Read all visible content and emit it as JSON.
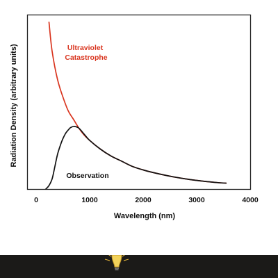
{
  "chart_data": {
    "type": "line",
    "xlabel": "Wavelength (nm)",
    "ylabel": "Radiation Density (arbitrary units)",
    "xlim": [
      0,
      4000
    ],
    "x_ticks": [
      0,
      1000,
      2000,
      3000,
      4000
    ],
    "y_ticks_labeled": false,
    "grid": false,
    "series": [
      {
        "name": "Ultraviolet Catastrophe",
        "color": "#d9351f",
        "points": [
          [
            240,
            96
          ],
          [
            300,
            79
          ],
          [
            400,
            63
          ],
          [
            500,
            53
          ],
          [
            600,
            45
          ],
          [
            700,
            40
          ],
          [
            800,
            35
          ],
          [
            900,
            31
          ],
          [
            1000,
            28
          ],
          [
            1200,
            23
          ],
          [
            1400,
            19
          ],
          [
            1600,
            16
          ],
          [
            1800,
            13
          ],
          [
            2000,
            11
          ],
          [
            2200,
            9.4
          ],
          [
            2500,
            7.4
          ],
          [
            2800,
            5.8
          ],
          [
            3100,
            4.6
          ],
          [
            3400,
            3.7
          ],
          [
            3550,
            3.4
          ]
        ]
      },
      {
        "name": "Observation",
        "color": "#111111",
        "points": [
          [
            180,
            0
          ],
          [
            240,
            2
          ],
          [
            300,
            6
          ],
          [
            350,
            13
          ],
          [
            400,
            20
          ],
          [
            450,
            25
          ],
          [
            500,
            29
          ],
          [
            550,
            32
          ],
          [
            600,
            34
          ],
          [
            650,
            35.5
          ],
          [
            720,
            36
          ],
          [
            800,
            35
          ],
          [
            900,
            31.5
          ],
          [
            1000,
            28
          ],
          [
            1200,
            23
          ],
          [
            1400,
            19
          ],
          [
            1600,
            16
          ],
          [
            1800,
            13
          ],
          [
            2000,
            11
          ],
          [
            2200,
            9.4
          ],
          [
            2500,
            7.4
          ],
          [
            2800,
            5.8
          ],
          [
            3100,
            4.6
          ],
          [
            3400,
            3.7
          ],
          [
            3550,
            3.4
          ]
        ]
      }
    ]
  },
  "footer": {
    "background": "#1b1a18",
    "icon": "lightbulb-icon"
  }
}
